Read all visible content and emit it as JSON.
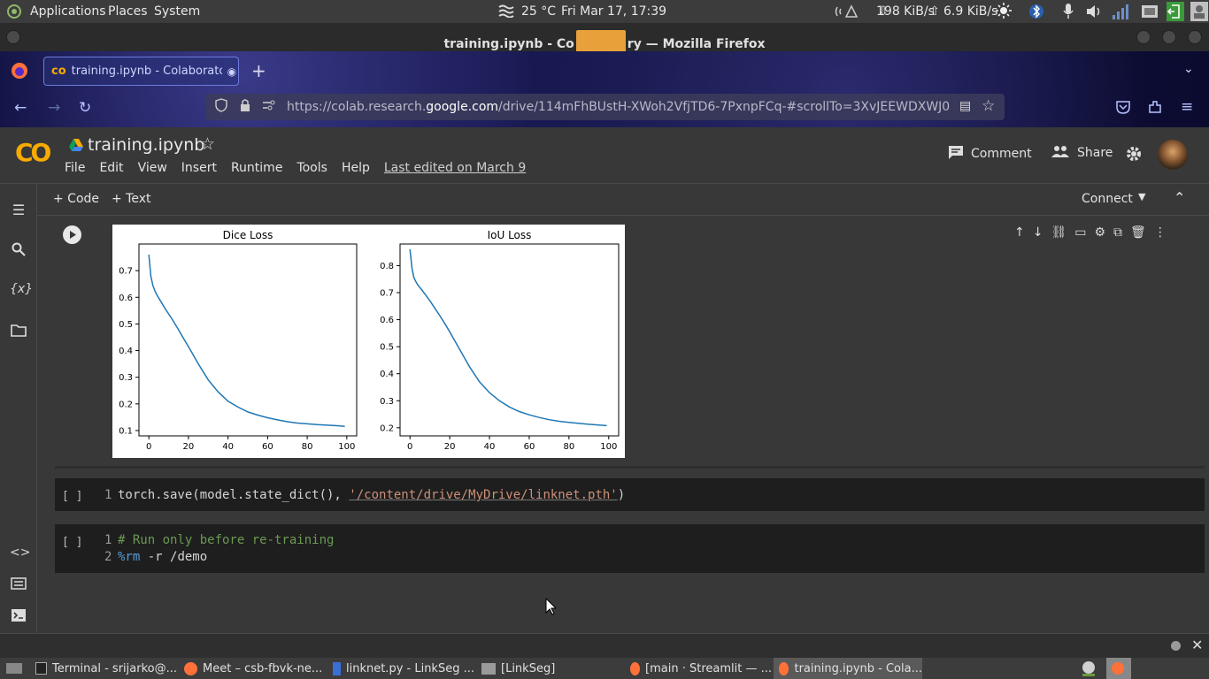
{
  "system_panel": {
    "menus": [
      "Applications",
      "Places",
      "System"
    ],
    "weather": "25 °C",
    "clock": "Fri Mar 17, 17:39",
    "net_down": "198 KiB/s",
    "net_up": "6.9 KiB/s"
  },
  "window": {
    "title": "training.ipynb - Co",
    "title_tail": "ry — Mozilla Firefox"
  },
  "browser": {
    "tab_title": "training.ipynb - Colaborato",
    "url_prefix": "https://colab.research.",
    "url_domain": "google.com",
    "url_path": "/drive/114mFhBUstH-XWoh2VfjTD6-7PxnpFCq-#scrollTo=3XvJEEWDXWJ0"
  },
  "colab": {
    "logo": "CO",
    "notebook_title": "training.ipynb",
    "menu": [
      "File",
      "Edit",
      "View",
      "Insert",
      "Runtime",
      "Tools",
      "Help"
    ],
    "last_edited": "Last edited on March 9",
    "comment_label": "Comment",
    "share_label": "Share",
    "add_code_label": "+ Code",
    "add_text_label": "+ Text",
    "connect_label": "Connect"
  },
  "cells": [
    {
      "bracket": "[ ]",
      "lines": [
        {
          "n": "1",
          "code": "torch.save(model.state_dict(), ",
          "string": "'/content/drive/MyDrive/linknet.pth'",
          "tail": ")"
        }
      ]
    },
    {
      "bracket": "[ ]",
      "lines": [
        {
          "n": "1",
          "comment": "# Run only before re-training"
        },
        {
          "n": "2",
          "magic": "%rm",
          "code": " -r /demo"
        }
      ]
    }
  ],
  "taskbar": {
    "items": [
      "Terminal - srijarko@...",
      "Meet – csb-fbvk-ne...",
      "linknet.py - LinkSeg ...",
      "[LinkSeg]",
      "[main · Streamlit — ...",
      "training.ipynb - Cola..."
    ]
  },
  "colors": {
    "line": "#1f77b4",
    "colab_orange": "#f9ab00",
    "string": "#ce9178",
    "comment": "#6a9955",
    "magic": "#569cd6"
  },
  "chart_data": [
    {
      "type": "line",
      "title": "Dice Loss",
      "xlabel": "",
      "ylabel": "",
      "xlim": [
        -5,
        105
      ],
      "ylim": [
        0.08,
        0.8
      ],
      "xticks": [
        0,
        20,
        40,
        60,
        80,
        100
      ],
      "yticks": [
        0.1,
        0.2,
        0.3,
        0.4,
        0.5,
        0.6,
        0.7
      ],
      "x": [
        0,
        1,
        2,
        3,
        4,
        6,
        8,
        10,
        12,
        15,
        18,
        20,
        25,
        30,
        35,
        40,
        45,
        50,
        55,
        60,
        65,
        70,
        75,
        80,
        85,
        90,
        95,
        99
      ],
      "y": [
        0.76,
        0.68,
        0.645,
        0.625,
        0.61,
        0.585,
        0.56,
        0.538,
        0.515,
        0.478,
        0.44,
        0.415,
        0.35,
        0.29,
        0.245,
        0.21,
        0.188,
        0.17,
        0.158,
        0.148,
        0.14,
        0.133,
        0.128,
        0.125,
        0.122,
        0.12,
        0.118,
        0.116
      ]
    },
    {
      "type": "line",
      "title": "IoU Loss",
      "xlabel": "",
      "ylabel": "",
      "xlim": [
        -5,
        105
      ],
      "ylim": [
        0.17,
        0.88
      ],
      "xticks": [
        0,
        20,
        40,
        60,
        80,
        100
      ],
      "yticks": [
        0.2,
        0.3,
        0.4,
        0.5,
        0.6,
        0.7,
        0.8
      ],
      "x": [
        0,
        1,
        2,
        3,
        4,
        6,
        8,
        10,
        12,
        15,
        18,
        20,
        25,
        30,
        35,
        40,
        45,
        50,
        55,
        60,
        65,
        70,
        75,
        80,
        85,
        90,
        95,
        99
      ],
      "y": [
        0.86,
        0.79,
        0.755,
        0.74,
        0.728,
        0.71,
        0.69,
        0.67,
        0.648,
        0.615,
        0.58,
        0.555,
        0.49,
        0.425,
        0.37,
        0.33,
        0.3,
        0.277,
        0.26,
        0.248,
        0.238,
        0.23,
        0.224,
        0.22,
        0.216,
        0.213,
        0.21,
        0.208
      ]
    }
  ]
}
